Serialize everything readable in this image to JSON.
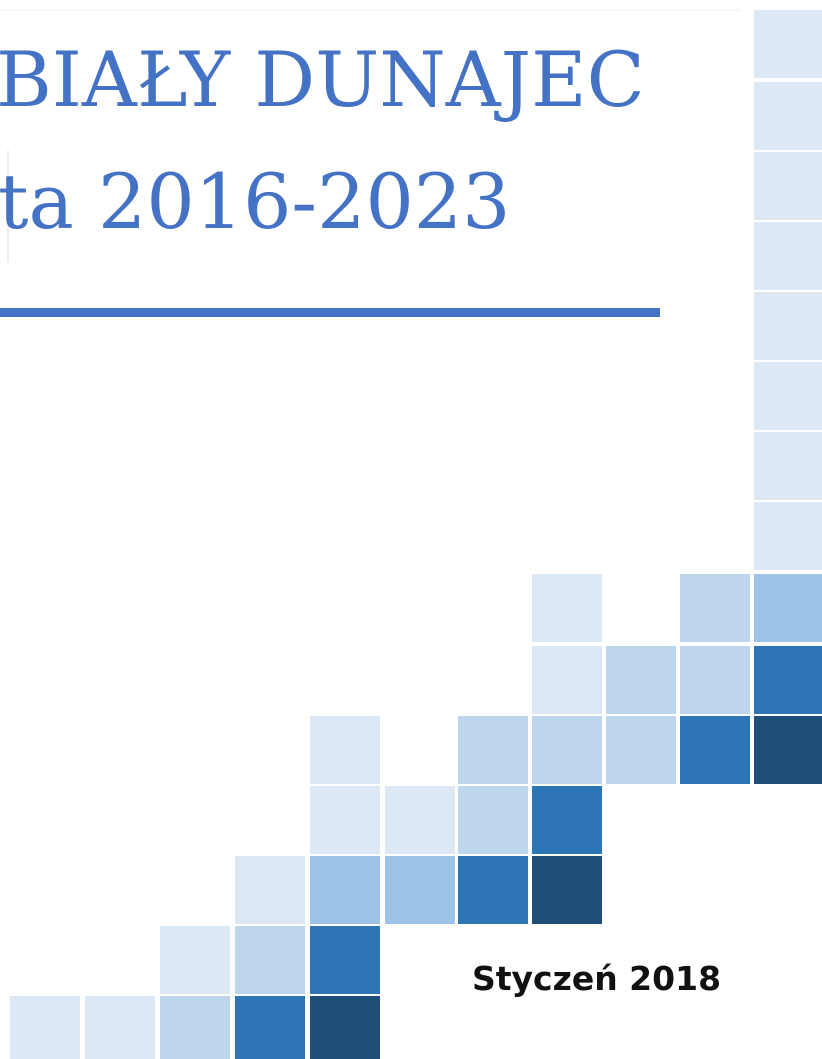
{
  "cover": {
    "title_line1": "BIAŁY DUNAJEC",
    "title_line2": "ta 2016-2023",
    "date": "Styczeń 2018"
  }
}
